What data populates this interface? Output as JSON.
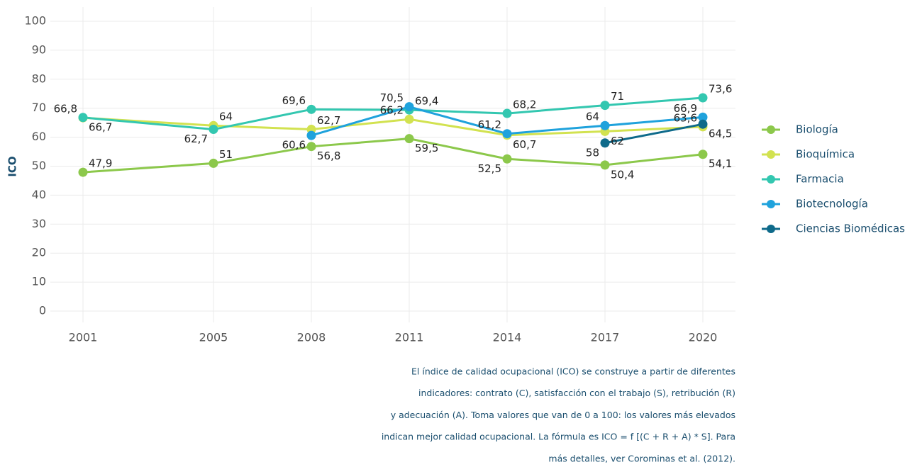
{
  "chart_data": {
    "type": "line",
    "ylabel": "ICO",
    "x": [
      2001,
      2005,
      2008,
      2011,
      2014,
      2017,
      2020
    ],
    "xlim": [
      2000,
      2021
    ],
    "xticks": [
      2001,
      2005,
      2008,
      2011,
      2014,
      2017,
      2020
    ],
    "ylim": [
      0,
      100
    ],
    "yticks": [
      0,
      10,
      20,
      30,
      40,
      50,
      60,
      70,
      80,
      90,
      100
    ],
    "grid": true,
    "legend": "right",
    "series": [
      {
        "name": "Biología",
        "color": "#8cc84b",
        "values": [
          47.9,
          51,
          56.8,
          59.5,
          52.5,
          50.4,
          54.1
        ],
        "value_labels": [
          "47,9",
          "51",
          "56,8",
          "59,5",
          "52,5",
          "50,4",
          "54,1"
        ]
      },
      {
        "name": "Bioquímica",
        "color": "#d2e250",
        "values": [
          66.7,
          64,
          62.7,
          66.2,
          60.7,
          62,
          63.6
        ],
        "value_labels": [
          "66,7",
          "64",
          "62,7",
          "66,2",
          "60,7",
          "62",
          "63,6"
        ]
      },
      {
        "name": "Farmacia",
        "color": "#33c7b0",
        "values": [
          66.8,
          62.7,
          69.6,
          69.4,
          68.2,
          71,
          73.6
        ],
        "value_labels": [
          "66,8",
          "62,7",
          "69,6",
          "69,4",
          "68,2",
          "71",
          "73,6"
        ]
      },
      {
        "name": "Biotecnología",
        "color": "#1fa2dc",
        "values": [
          null,
          null,
          60.6,
          70.5,
          61.2,
          64,
          66.9
        ],
        "value_labels": [
          null,
          null,
          "60,6",
          "70,5",
          "61,2",
          "64",
          "66,9"
        ]
      },
      {
        "name": "Ciencias Biomédicas",
        "color": "#0e6a8a",
        "values": [
          null,
          null,
          null,
          null,
          null,
          58,
          64.5
        ],
        "value_labels": [
          null,
          null,
          null,
          null,
          null,
          "58",
          "64,5"
        ]
      }
    ],
    "note": [
      "El índice de calidad ocupacional (ICO) se construye a partir de diferentes",
      "indicadores: contrato (C), satisfacción con el trabajo (S), retribución (R)",
      "y adecuación (A). Toma valores que van de 0 a 100: los valores más elevados",
      "indican mejor calidad ocupacional. La fórmula es ICO = f [(C + R + A) * S]. Para",
      "más detalles, ver Corominas et al. (2012)."
    ]
  }
}
